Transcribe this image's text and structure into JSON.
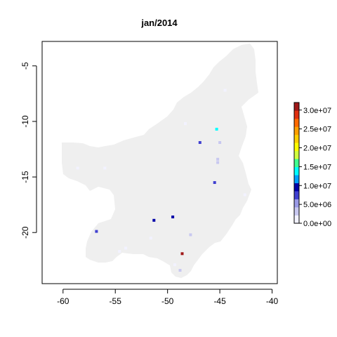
{
  "chart_data": {
    "type": "heatmap",
    "title": "jan/2014",
    "xlabel": "",
    "ylabel": "",
    "xlim": [
      -62,
      -39.5
    ],
    "ylim": [
      -24.6,
      -2.8
    ],
    "x_ticks": [
      -60,
      -55,
      -50,
      -45,
      -40
    ],
    "y_ticks": [
      -5,
      -10,
      -15,
      -20
    ],
    "x_tick_labels": [
      "-60",
      "-55",
      "-50",
      "-45",
      "-40"
    ],
    "y_tick_labels": [
      "-5",
      "-10",
      "-15",
      "-20"
    ],
    "colorbar": {
      "min": 0,
      "max": 32000000,
      "tick_values": [
        0,
        5000000,
        10000000,
        15000000,
        20000000,
        25000000,
        30000000
      ],
      "tick_labels": [
        "0.0e+00",
        "5.0e+06",
        "1.0e+07",
        "1.5e+07",
        "2.0e+07",
        "2.5e+07",
        "3.0e+07"
      ],
      "colors": [
        "#f2f2ff",
        "#c8c8f0",
        "#9a9ae6",
        "#4040d0",
        "#0000a8",
        "#00a0ff",
        "#00ffff",
        "#40ff90",
        "#d0ff40",
        "#ffff00",
        "#ffd000",
        "#ffa000",
        "#ff6a00",
        "#e03010",
        "#a01818"
      ]
    },
    "background_region_color": "#efefef",
    "points": [
      {
        "x": -44.5,
        "y": -7.2,
        "value": 2000000
      },
      {
        "x": -48.3,
        "y": -10.2,
        "value": 2000000
      },
      {
        "x": -45.3,
        "y": -10.7,
        "value": 13000000
      },
      {
        "x": -46.9,
        "y": -11.9,
        "value": 8000000
      },
      {
        "x": -45.0,
        "y": -11.9,
        "value": 3500000
      },
      {
        "x": -45.2,
        "y": -13.4,
        "value": 3500000
      },
      {
        "x": -45.2,
        "y": -13.7,
        "value": 3500000
      },
      {
        "x": -58.6,
        "y": -14.2,
        "value": 2000000
      },
      {
        "x": -56.0,
        "y": -14.2,
        "value": 1500000
      },
      {
        "x": -45.5,
        "y": -15.5,
        "value": 7500000
      },
      {
        "x": -42.6,
        "y": -16.6,
        "value": 1500000
      },
      {
        "x": -49.5,
        "y": -18.6,
        "value": 9000000
      },
      {
        "x": -51.3,
        "y": -18.9,
        "value": 9000000
      },
      {
        "x": -56.8,
        "y": -19.9,
        "value": 7000000
      },
      {
        "x": -47.8,
        "y": -20.2,
        "value": 3500000
      },
      {
        "x": -51.6,
        "y": -20.5,
        "value": 2000000
      },
      {
        "x": -54.0,
        "y": -21.4,
        "value": 2000000
      },
      {
        "x": -54.6,
        "y": -21.7,
        "value": 2000000
      },
      {
        "x": -48.6,
        "y": -21.9,
        "value": 31000000
      },
      {
        "x": -49.3,
        "y": -22.9,
        "value": 2000000
      },
      {
        "x": -48.8,
        "y": -23.4,
        "value": 2500000
      }
    ]
  }
}
